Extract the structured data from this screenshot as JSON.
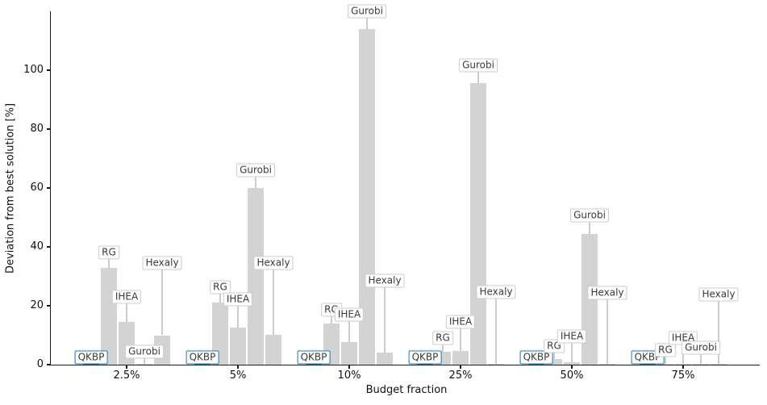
{
  "chart_data": {
    "type": "bar",
    "title": "",
    "xlabel": "Budget fraction",
    "ylabel": "Deviation from best solution [%]",
    "categories": [
      "2.5%",
      "5%",
      "10%",
      "25%",
      "50%",
      "75%"
    ],
    "yticks": [
      0,
      20,
      40,
      60,
      80,
      100
    ],
    "ylim": [
      0,
      120
    ],
    "grid": false,
    "legend": "none",
    "bar_color_default": "#d3d3d3",
    "leader_color_default": "#cccccc",
    "annotation_box": {
      "bg": "#ffffff",
      "border": "#cccccc",
      "text": "#3a3a3a"
    },
    "accent_color": "#1f77b4",
    "series": [
      {
        "name": "QKBP",
        "color": "#1f77b4",
        "box_border": "#1f77b4",
        "leader_color": "#1f77b4",
        "values": [
          0.7,
          0.4,
          0.3,
          0.3,
          0.3,
          0.2
        ],
        "label_y": [
          2.5,
          2.5,
          2.5,
          2.5,
          2.5,
          2.5
        ]
      },
      {
        "name": "RG",
        "values": [
          33,
          21,
          14,
          4.3,
          2,
          0.3
        ],
        "label_y": [
          38,
          26.3,
          18.6,
          9,
          6.3,
          4.9
        ]
      },
      {
        "name": "IHEA",
        "values": [
          14.6,
          12.6,
          7.6,
          4.6,
          0.8,
          0.4
        ],
        "label_y": [
          23,
          22.2,
          17,
          14.5,
          9.6,
          9
        ]
      },
      {
        "name": "Gurobi",
        "values": [
          0.4,
          60,
          114,
          95.5,
          44.3,
          0.3
        ],
        "label_y": [
          4.4,
          65.9,
          120,
          101.7,
          50.6,
          5.7
        ]
      },
      {
        "name": "Hexaly",
        "values": [
          10,
          10.1,
          4.1,
          0.4,
          0.3,
          0.3
        ],
        "label_y": [
          34.5,
          34.5,
          28.4,
          24.6,
          24.3,
          23.8
        ]
      }
    ]
  }
}
